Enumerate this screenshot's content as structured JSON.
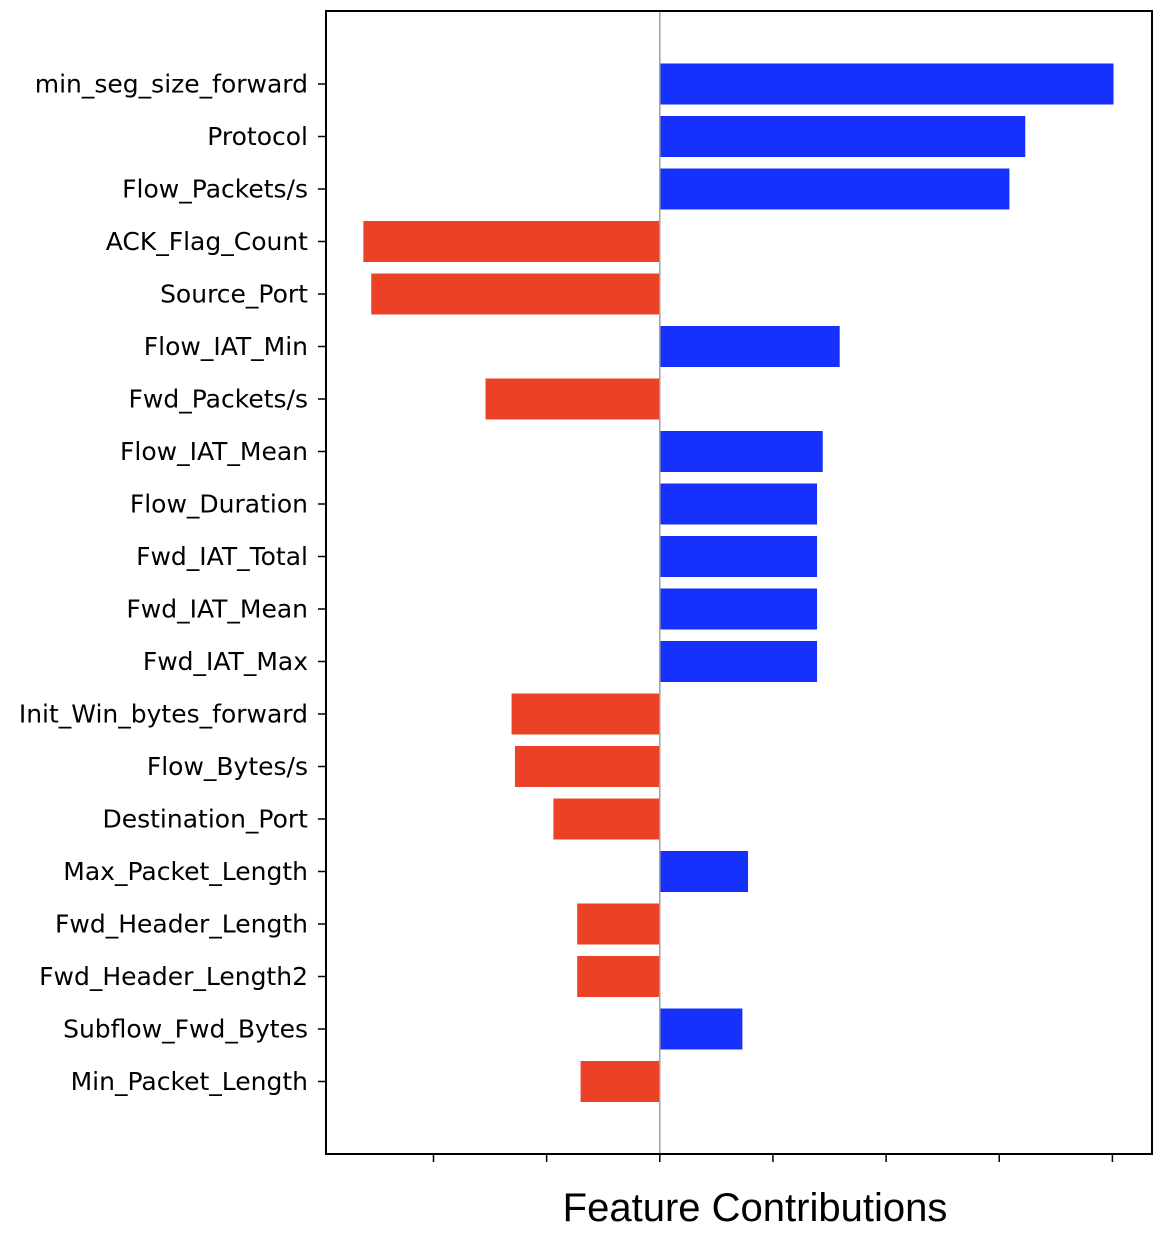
{
  "chart_data": {
    "type": "bar",
    "orientation": "horizontal",
    "xlabel": "Feature Contributions",
    "ylabel": "",
    "title": "",
    "categories": [
      "min_seg_size_forward",
      "Protocol",
      "Flow_Packets/s",
      "ACK_Flag_Count",
      "Source_Port",
      "Flow_IAT_Min",
      "Fwd_Packets/s",
      "Flow_IAT_Mean",
      "Flow_Duration",
      "Fwd_IAT_Total",
      "Fwd_IAT_Mean",
      "Fwd_IAT_Max",
      "Init_Win_bytes_forward",
      "Flow_Bytes/s",
      "Destination_Port",
      "Max_Packet_Length",
      "Fwd_Header_Length",
      "Fwd_Header_Length2",
      "Subflow_Fwd_Bytes",
      "Min_Packet_Length"
    ],
    "values": [
      4.01,
      3.23,
      3.09,
      -2.62,
      -2.55,
      1.59,
      -1.54,
      1.44,
      1.39,
      1.39,
      1.39,
      1.39,
      -1.31,
      -1.28,
      -0.94,
      0.78,
      -0.73,
      -0.73,
      0.73,
      -0.7
    ],
    "xlim": [
      -2.95,
      4.35
    ],
    "x_ticks": [
      -2,
      -1,
      0,
      1,
      2,
      3,
      4
    ],
    "x_tick_labels_shown": false,
    "zero_line": true,
    "grid": false,
    "colors": {
      "positive": "#1531fb",
      "negative": "#eb4126",
      "zero_line": "#a0a0a0",
      "axis": "#000000"
    }
  }
}
